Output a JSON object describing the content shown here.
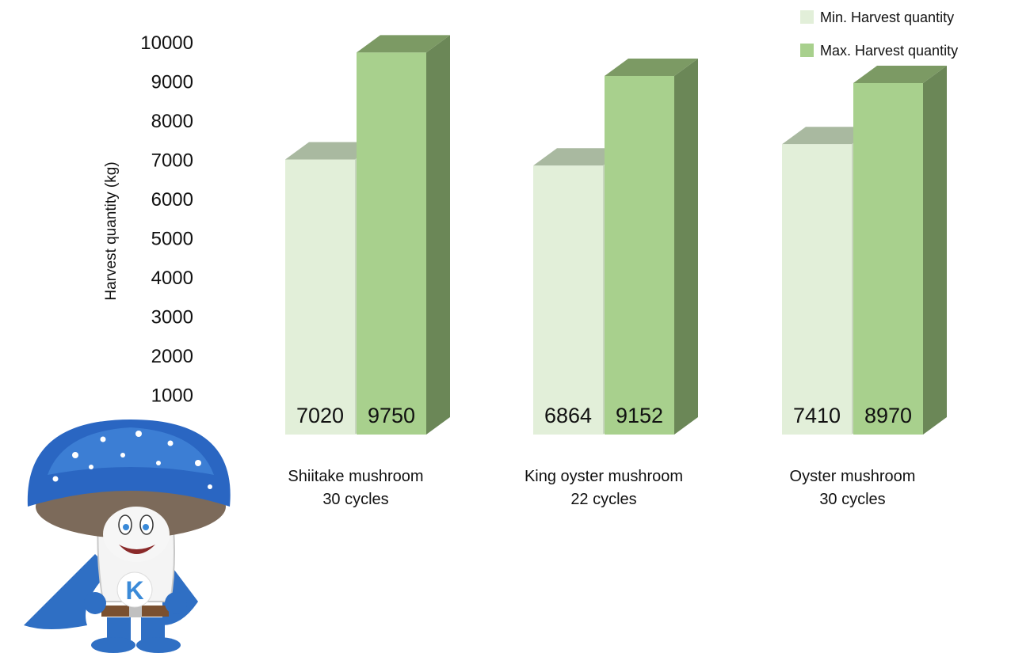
{
  "chart_data": {
    "type": "bar",
    "ylabel": "Harvest quantity (kg)",
    "yticks": [
      10000,
      9000,
      8000,
      7000,
      6000,
      5000,
      4000,
      3000,
      2000,
      1000
    ],
    "ylim": [
      0,
      10000
    ],
    "grid": false,
    "legend_position": "top-right",
    "categories": [
      {
        "name": "Shiitake mushroom",
        "cycles": "30 cycles"
      },
      {
        "name": "King oyster mushroom",
        "cycles": "22 cycles"
      },
      {
        "name": "Oyster mushroom",
        "cycles": "30 cycles"
      }
    ],
    "series": [
      {
        "name": "Min. Harvest quantity",
        "values": [
          7020,
          6864,
          7410
        ],
        "color_front": "#e2efd9",
        "color_top": "#a9b9a0",
        "color_side": "#c8d6bf"
      },
      {
        "name": "Max. Harvest quantity",
        "values": [
          9750,
          9152,
          8970
        ],
        "color_front": "#a8d08d",
        "color_top": "#7c9a64",
        "color_side": "#6b8757"
      }
    ]
  },
  "mascot": {
    "badge_letter": "K",
    "icon": "mushroom-superhero-mascot"
  }
}
